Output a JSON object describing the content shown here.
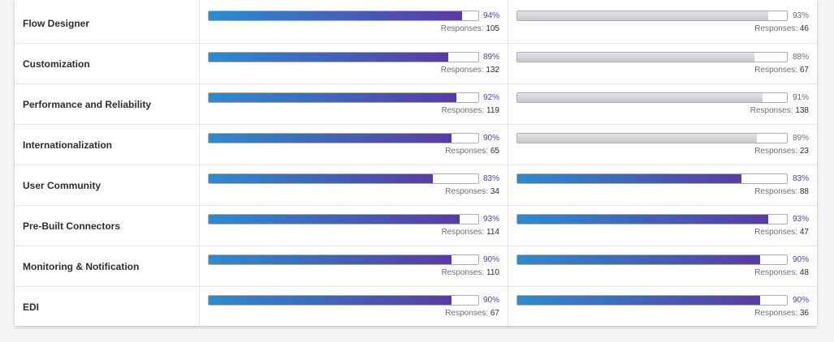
{
  "colors": {
    "brand_start": "#2a8cd1",
    "brand_end": "#5a3aa6",
    "gray_fill": "#c7c9cc"
  },
  "response_label": "Responses:",
  "rows": [
    {
      "name": "Flow Designer",
      "a": {
        "pct": 94,
        "pct_text": "94%",
        "responses": "105",
        "style": "brand"
      },
      "b": {
        "pct": 93,
        "pct_text": "93%",
        "responses": "46",
        "style": "gray"
      }
    },
    {
      "name": "Customization",
      "a": {
        "pct": 89,
        "pct_text": "89%",
        "responses": "132",
        "style": "brand"
      },
      "b": {
        "pct": 88,
        "pct_text": "88%",
        "responses": "67",
        "style": "gray"
      }
    },
    {
      "name": "Performance and Reliability",
      "a": {
        "pct": 92,
        "pct_text": "92%",
        "responses": "119",
        "style": "brand"
      },
      "b": {
        "pct": 91,
        "pct_text": "91%",
        "responses": "138",
        "style": "gray"
      }
    },
    {
      "name": "Internationalization",
      "a": {
        "pct": 90,
        "pct_text": "90%",
        "responses": "65",
        "style": "brand"
      },
      "b": {
        "pct": 89,
        "pct_text": "89%",
        "responses": "23",
        "style": "gray"
      }
    },
    {
      "name": "User Community",
      "a": {
        "pct": 83,
        "pct_text": "83%",
        "responses": "34",
        "style": "brand"
      },
      "b": {
        "pct": 83,
        "pct_text": "83%",
        "responses": "88",
        "style": "brand"
      }
    },
    {
      "name": "Pre-Built Connectors",
      "a": {
        "pct": 93,
        "pct_text": "93%",
        "responses": "114",
        "style": "brand"
      },
      "b": {
        "pct": 93,
        "pct_text": "93%",
        "responses": "47",
        "style": "brand"
      }
    },
    {
      "name": "Monitoring & Notification",
      "a": {
        "pct": 90,
        "pct_text": "90%",
        "responses": "110",
        "style": "brand"
      },
      "b": {
        "pct": 90,
        "pct_text": "90%",
        "responses": "48",
        "style": "brand"
      }
    },
    {
      "name": "EDI",
      "a": {
        "pct": 90,
        "pct_text": "90%",
        "responses": "67",
        "style": "brand"
      },
      "b": {
        "pct": 90,
        "pct_text": "90%",
        "responses": "36",
        "style": "brand"
      }
    }
  ]
}
